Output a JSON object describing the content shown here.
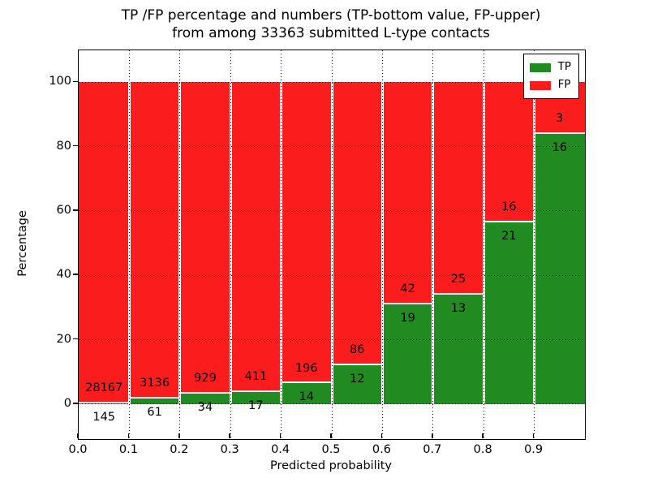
{
  "title": {
    "line1": "TP /FP percentage and numbers (TP-bottom value, FP-upper)",
    "line2": "from among 33363 submitted L-type contacts"
  },
  "chart_data": {
    "type": "bar",
    "stacked": true,
    "normalized": "each bar scaled to 100%",
    "title": "TP /FP percentage and numbers (TP-bottom value, FP-upper) from among 33363 submitted L-type contacts",
    "xlabel": "Predicted probability",
    "ylabel": "Percentage",
    "categories": [
      "0.0-0.1",
      "0.1-0.2",
      "0.2-0.3",
      "0.3-0.4",
      "0.4-0.5",
      "0.5-0.6",
      "0.6-0.7",
      "0.7-0.8",
      "0.8-0.9",
      "0.9-1.0"
    ],
    "x_bin_edges": [
      0.0,
      0.1,
      0.2,
      0.3,
      0.4,
      0.5,
      0.6,
      0.7,
      0.8,
      0.9,
      1.0
    ],
    "series": [
      {
        "name": "TP",
        "color": "#218a21",
        "position": "bottom",
        "counts": [
          145,
          61,
          34,
          17,
          14,
          12,
          19,
          13,
          21,
          16
        ]
      },
      {
        "name": "FP",
        "color": "#fb1d1d",
        "position": "top",
        "counts": [
          28167,
          3136,
          929,
          411,
          196,
          86,
          42,
          25,
          16,
          3
        ]
      }
    ],
    "tp_percent": [
      0.5,
      1.9,
      3.5,
      4.0,
      6.7,
      12.2,
      31.1,
      34.2,
      56.8,
      84.2
    ],
    "total_contacts": 33363,
    "x_ticks": [
      "0.0",
      "0.1",
      "0.2",
      "0.3",
      "0.4",
      "0.5",
      "0.6",
      "0.7",
      "0.8",
      "0.9"
    ],
    "y_ticks": [
      0,
      20,
      40,
      60,
      80,
      100
    ],
    "xlim": [
      0.0,
      1.0
    ],
    "ylim": [
      -11,
      110
    ],
    "grid": true,
    "grid_style": "dotted black",
    "legend_position": "upper right",
    "legend": [
      {
        "label": "TP",
        "color": "#218a21"
      },
      {
        "label": "FP",
        "color": "#fb1d1d"
      }
    ]
  }
}
